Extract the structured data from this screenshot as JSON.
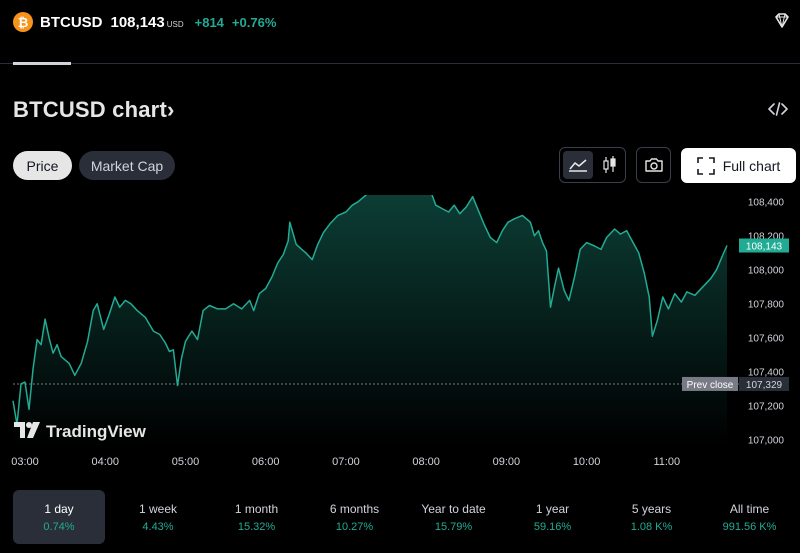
{
  "header": {
    "logo_glyph": "₿",
    "symbol": "BTCUSD",
    "price": "108,143",
    "currency": "USD",
    "change": "+814",
    "change_percent": "+0.76%"
  },
  "section": {
    "title": "BTCUSD chart",
    "title_chevron": "›"
  },
  "controls": {
    "price_tab": "Price",
    "market_cap_tab": "Market Cap",
    "full_chart_label": "Full chart"
  },
  "colors": {
    "up": "#22ab94",
    "btc": "#f7931a",
    "prev_close": "#787b86"
  },
  "chart_data": {
    "type": "area",
    "x_tick_labels": [
      "03:00",
      "04:00",
      "05:00",
      "06:00",
      "07:00",
      "08:00",
      "09:00",
      "10:00",
      "11:00"
    ],
    "x_tick_hours": [
      3,
      4,
      5,
      6,
      7,
      8,
      9,
      10,
      11
    ],
    "x_range_hours": [
      2.85,
      11.85
    ],
    "y_tick_labels": [
      "108,400",
      "108,200",
      "108,000",
      "107,800",
      "107,600",
      "107,400",
      "107,200",
      "107,000"
    ],
    "y_tick_values": [
      108400,
      108200,
      108000,
      107800,
      107600,
      107400,
      107200,
      107000
    ],
    "ylim": [
      106970,
      108440
    ],
    "last_price_label": "108,143",
    "last_price": 108143,
    "prev_close_label": "Prev close",
    "prev_close_value_label": "107,329",
    "prev_close": 107329,
    "watermark": "TradingView",
    "series": [
      {
        "name": "BTCUSD",
        "points": [
          [
            2.85,
            107230
          ],
          [
            2.9,
            107090
          ],
          [
            2.95,
            107330
          ],
          [
            3.0,
            107340
          ],
          [
            3.05,
            107180
          ],
          [
            3.1,
            107420
          ],
          [
            3.15,
            107590
          ],
          [
            3.2,
            107560
          ],
          [
            3.25,
            107710
          ],
          [
            3.3,
            107600
          ],
          [
            3.35,
            107510
          ],
          [
            3.4,
            107560
          ],
          [
            3.45,
            107490
          ],
          [
            3.55,
            107450
          ],
          [
            3.62,
            107380
          ],
          [
            3.7,
            107450
          ],
          [
            3.78,
            107580
          ],
          [
            3.85,
            107760
          ],
          [
            3.9,
            107800
          ],
          [
            3.98,
            107650
          ],
          [
            4.05,
            107740
          ],
          [
            4.12,
            107840
          ],
          [
            4.18,
            107780
          ],
          [
            4.25,
            107820
          ],
          [
            4.32,
            107800
          ],
          [
            4.4,
            107760
          ],
          [
            4.5,
            107720
          ],
          [
            4.6,
            107640
          ],
          [
            4.68,
            107620
          ],
          [
            4.75,
            107570
          ],
          [
            4.8,
            107520
          ],
          [
            4.85,
            107530
          ],
          [
            4.9,
            107320
          ],
          [
            4.95,
            107480
          ],
          [
            5.0,
            107580
          ],
          [
            5.08,
            107640
          ],
          [
            5.15,
            107590
          ],
          [
            5.22,
            107760
          ],
          [
            5.3,
            107790
          ],
          [
            5.4,
            107770
          ],
          [
            5.5,
            107770
          ],
          [
            5.6,
            107800
          ],
          [
            5.7,
            107770
          ],
          [
            5.8,
            107820
          ],
          [
            5.85,
            107760
          ],
          [
            5.92,
            107860
          ],
          [
            6.0,
            107890
          ],
          [
            6.08,
            107960
          ],
          [
            6.15,
            108040
          ],
          [
            6.22,
            108090
          ],
          [
            6.28,
            108170
          ],
          [
            6.3,
            108280
          ],
          [
            6.38,
            108150
          ],
          [
            6.45,
            108120
          ],
          [
            6.5,
            108100
          ],
          [
            6.58,
            108060
          ],
          [
            6.65,
            108150
          ],
          [
            6.72,
            108220
          ],
          [
            6.8,
            108270
          ],
          [
            6.9,
            108320
          ],
          [
            7.0,
            108340
          ],
          [
            7.08,
            108380
          ],
          [
            7.15,
            108400
          ],
          [
            7.25,
            108440
          ],
          [
            7.35,
            108490
          ],
          [
            7.45,
            108500
          ],
          [
            7.5,
            108480
          ],
          [
            7.6,
            108510
          ],
          [
            7.7,
            108540
          ],
          [
            7.78,
            108520
          ],
          [
            7.85,
            108500
          ],
          [
            7.95,
            108480
          ],
          [
            8.05,
            108470
          ],
          [
            8.12,
            108380
          ],
          [
            8.2,
            108360
          ],
          [
            8.28,
            108340
          ],
          [
            8.35,
            108380
          ],
          [
            8.42,
            108330
          ],
          [
            8.5,
            108370
          ],
          [
            8.58,
            108430
          ],
          [
            8.65,
            108350
          ],
          [
            8.72,
            108270
          ],
          [
            8.8,
            108190
          ],
          [
            8.88,
            108160
          ],
          [
            8.95,
            108230
          ],
          [
            9.02,
            108280
          ],
          [
            9.1,
            108300
          ],
          [
            9.2,
            108320
          ],
          [
            9.3,
            108280
          ],
          [
            9.35,
            108200
          ],
          [
            9.4,
            108230
          ],
          [
            9.45,
            108160
          ],
          [
            9.5,
            108110
          ],
          [
            9.55,
            107780
          ],
          [
            9.6,
            107900
          ],
          [
            9.65,
            108010
          ],
          [
            9.72,
            107880
          ],
          [
            9.78,
            107820
          ],
          [
            9.85,
            107960
          ],
          [
            9.92,
            108120
          ],
          [
            10.0,
            108160
          ],
          [
            10.1,
            108140
          ],
          [
            10.18,
            108120
          ],
          [
            10.25,
            108190
          ],
          [
            10.35,
            108240
          ],
          [
            10.42,
            108210
          ],
          [
            10.5,
            108230
          ],
          [
            10.58,
            108160
          ],
          [
            10.65,
            108100
          ],
          [
            10.72,
            107980
          ],
          [
            10.78,
            107840
          ],
          [
            10.82,
            107610
          ],
          [
            10.88,
            107700
          ],
          [
            10.95,
            107840
          ],
          [
            11.02,
            107770
          ],
          [
            11.1,
            107860
          ],
          [
            11.18,
            107810
          ],
          [
            11.25,
            107870
          ],
          [
            11.35,
            107850
          ],
          [
            11.45,
            107900
          ],
          [
            11.55,
            107950
          ],
          [
            11.62,
            108000
          ],
          [
            11.7,
            108090
          ],
          [
            11.75,
            108143
          ]
        ]
      }
    ]
  },
  "timeframes": [
    {
      "label": "1 day",
      "value": "0.74%",
      "active": true
    },
    {
      "label": "1 week",
      "value": "4.43%",
      "active": false
    },
    {
      "label": "1 month",
      "value": "15.32%",
      "active": false
    },
    {
      "label": "6 months",
      "value": "10.27%",
      "active": false
    },
    {
      "label": "Year to date",
      "value": "15.79%",
      "active": false
    },
    {
      "label": "1 year",
      "value": "59.16%",
      "active": false
    },
    {
      "label": "5 years",
      "value": "1.08 K%",
      "active": false
    },
    {
      "label": "All time",
      "value": "991.56 K%",
      "active": false
    }
  ]
}
